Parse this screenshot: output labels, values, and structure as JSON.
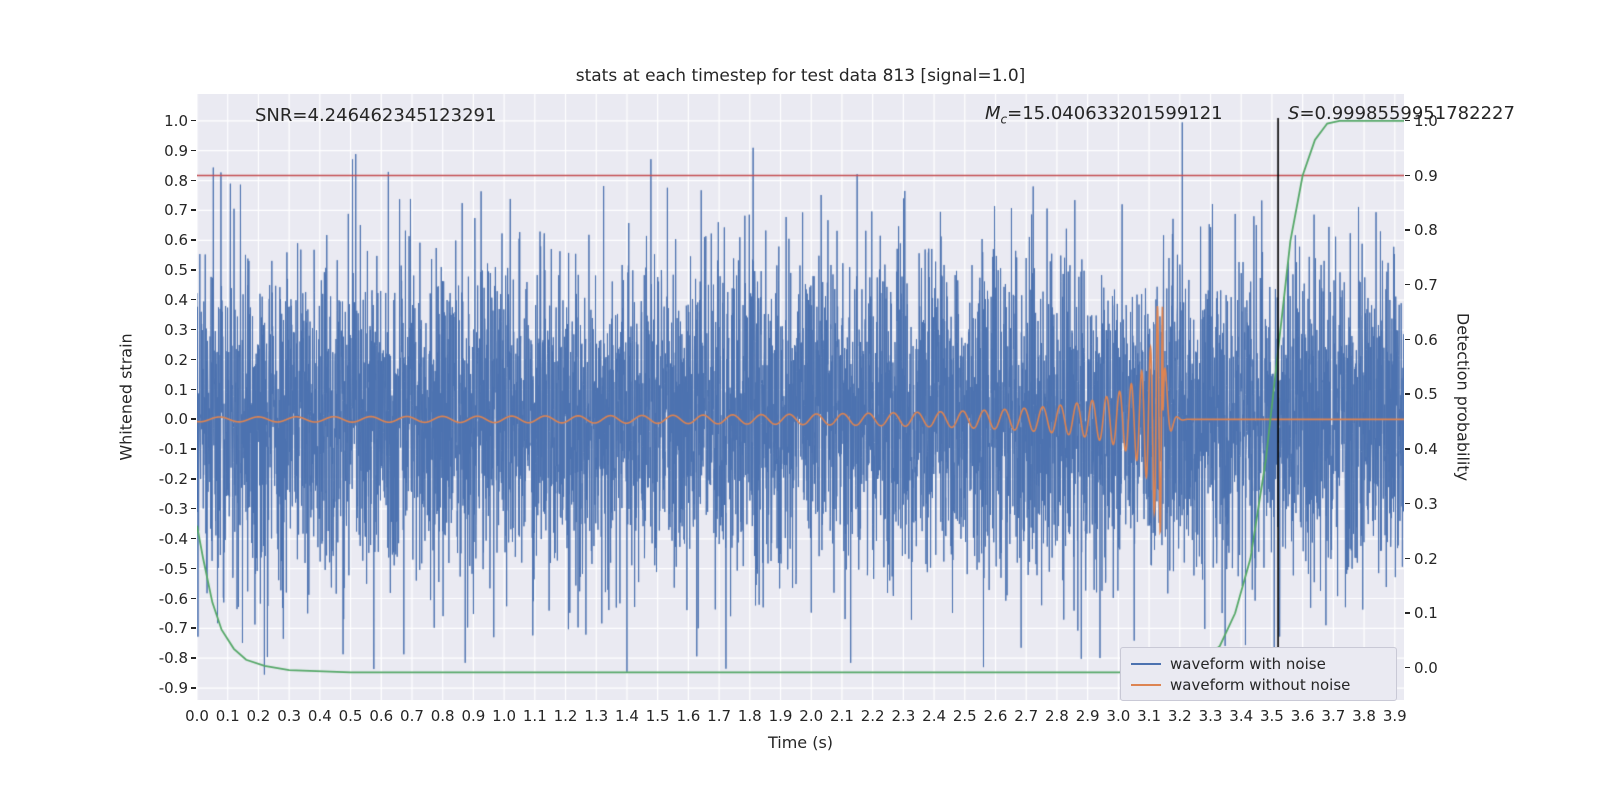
{
  "chart_data": {
    "type": "line",
    "title": "stats at each timestep for test data 813 [signal=1.0]",
    "xlabel": "Time (s)",
    "ylabel_left": "Whitened strain",
    "ylabel_right": "Detection probability",
    "xlim": [
      0,
      3.93
    ],
    "ylim_left": [
      -0.94,
      1.09
    ],
    "ylim_right": [
      -0.0585,
      1.049
    ],
    "x_ticks": [
      "0.0",
      "0.1",
      "0.2",
      "0.3",
      "0.4",
      "0.5",
      "0.6",
      "0.7",
      "0.8",
      "0.9",
      "1.0",
      "1.1",
      "1.2",
      "1.3",
      "1.4",
      "1.5",
      "1.6",
      "1.7",
      "1.8",
      "1.9",
      "2.0",
      "2.1",
      "2.2",
      "2.3",
      "2.4",
      "2.5",
      "2.6",
      "2.7",
      "2.8",
      "2.9",
      "3.0",
      "3.1",
      "3.2",
      "3.3",
      "3.4",
      "3.5",
      "3.6",
      "3.7",
      "3.8",
      "3.9"
    ],
    "y_ticks_left": [
      "1.0",
      "0.9",
      "0.8",
      "0.7",
      "0.6",
      "0.5",
      "0.4",
      "0.3",
      "0.2",
      "0.1",
      "0.0",
      "-0.1",
      "-0.2",
      "-0.3",
      "-0.4",
      "-0.5",
      "-0.6",
      "-0.7",
      "-0.8",
      "-0.9"
    ],
    "y_ticks_right": [
      "1.0",
      "0.9",
      "0.8",
      "0.7",
      "0.6",
      "0.5",
      "0.4",
      "0.3",
      "0.2",
      "0.1",
      "0.0"
    ],
    "grid": true,
    "colors": {
      "plot_bg": "#eaeaf2",
      "grid": "#ffffff",
      "text": "#262626",
      "noise": "#4c72b0",
      "signal": "#dd8452",
      "probability": "#55a868",
      "threshold": "#c44e52",
      "event": "#000000"
    },
    "annotations": {
      "snr": {
        "label": "SNR",
        "value": "=4.246462345123291"
      },
      "mc": {
        "label": "M",
        "sub": "c",
        "value": "=15.040633201599121"
      },
      "s": {
        "label": "S",
        "value": "=0.9998559951782227"
      }
    },
    "threshold_line": {
      "axis": "right",
      "value": 0.9,
      "color": "#c44e52"
    },
    "event_line": {
      "x": 3.52,
      "color": "#000000"
    },
    "series": [
      {
        "name": "waveform with noise",
        "color": "#4c72b0",
        "kind": "gaussian_noise",
        "std": 0.27,
        "seed": 813,
        "n_points": 6000,
        "clip": [
          -0.92,
          1.02
        ]
      },
      {
        "name": "waveform without noise",
        "color": "#dd8452",
        "kind": "chirp",
        "t_merge": 3.145,
        "f0": 12,
        "freq_exponent": -0.375,
        "amp_coeff": 0.02,
        "amp_exponent": -0.8,
        "amp_cap": 0.38,
        "ringdown": {
          "amp": 0.32,
          "tau": 0.013,
          "freq": 26
        },
        "flat_after": 0
      },
      {
        "name": "detection probability",
        "color": "#55a868",
        "axis": "right",
        "points": [
          [
            0.0,
            0.26
          ],
          [
            0.02,
            0.2
          ],
          [
            0.05,
            0.12
          ],
          [
            0.08,
            0.07
          ],
          [
            0.12,
            0.035
          ],
          [
            0.16,
            0.015
          ],
          [
            0.22,
            0.004
          ],
          [
            0.3,
            -0.004
          ],
          [
            0.5,
            -0.008
          ],
          [
            1.0,
            -0.008
          ],
          [
            1.5,
            -0.008
          ],
          [
            2.0,
            -0.008
          ],
          [
            2.5,
            -0.008
          ],
          [
            3.0,
            -0.008
          ],
          [
            3.15,
            -0.006
          ],
          [
            3.22,
            0.0
          ],
          [
            3.28,
            0.015
          ],
          [
            3.33,
            0.04
          ],
          [
            3.38,
            0.1
          ],
          [
            3.43,
            0.2
          ],
          [
            3.48,
            0.38
          ],
          [
            3.52,
            0.58
          ],
          [
            3.56,
            0.78
          ],
          [
            3.6,
            0.9
          ],
          [
            3.64,
            0.965
          ],
          [
            3.68,
            0.995
          ],
          [
            3.72,
            1.0
          ],
          [
            3.8,
            1.0
          ],
          [
            3.93,
            1.0
          ]
        ]
      }
    ],
    "legend": {
      "position": "lower right",
      "entries": [
        {
          "label": "waveform with noise",
          "color": "#4c72b0"
        },
        {
          "label": "waveform without noise",
          "color": "#dd8452"
        }
      ]
    }
  }
}
